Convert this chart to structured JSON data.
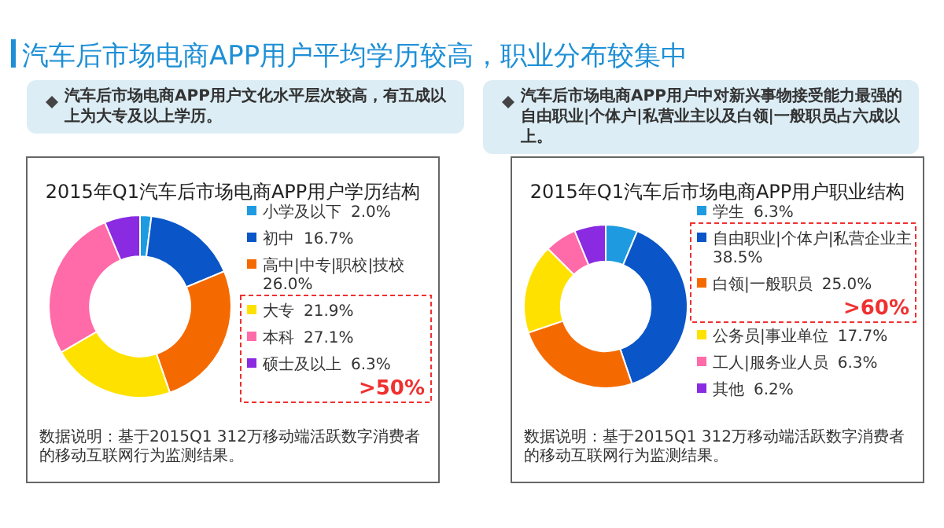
{
  "chart_data": [
    {
      "type": "donut",
      "title": "2015年Q1汽车后市场电商APP用户学历结构",
      "subtitle": "汽车后市场电商APP用户文化水平层次较高，有五成以上为大专及以上学历。",
      "categories": [
        "小学及以下",
        "初中",
        "高中|中专|职校|技校",
        "大专",
        "本科",
        "硕士及以上"
      ],
      "values": [
        2.0,
        16.7,
        26.0,
        21.9,
        27.1,
        6.3
      ],
      "colors": [
        "#1e9be0",
        "#0a56c8",
        "#f56a00",
        "#ffe100",
        "#ff6aa8",
        "#8a2be2"
      ],
      "value_labels": [
        "2.0%",
        "16.7%",
        "26.0%",
        "21.9%",
        "27.1%",
        "6.3%"
      ],
      "legend": "right",
      "annotations": [
        "汽车后市场电商APP用户平均学历较高，职业分布较集中",
        ">50%",
        "数据说明：基于2015Q1 312万移动端活跃数字消费者的移动互联网行为监测结果。"
      ]
    },
    {
      "type": "donut",
      "title": "2015年Q1汽车后市场电商APP用户职业结构",
      "subtitle": "汽车后市场电商APP用户中对新兴事物接受能力最强的自由职业|个体户|私营业主以及白领|一般职员占六成以上。",
      "categories": [
        "学生",
        "自由职业|个体户|私营企业主",
        "白领|一般职员",
        "公务员|事业单位",
        "工人|服务业人员",
        "其他"
      ],
      "values": [
        6.3,
        38.5,
        25.0,
        17.7,
        6.3,
        6.2
      ],
      "colors": [
        "#1e9be0",
        "#0a56c8",
        "#f56a00",
        "#ffe100",
        "#ff6aa8",
        "#8a2be2"
      ],
      "value_labels": [
        "6.3%",
        "38.5%",
        "25.0%",
        "17.7%",
        "6.3%",
        "6.2%"
      ],
      "legend": "right",
      "annotations": [
        ">60%",
        "数据说明：基于2015Q1 312万移动端活跃数字消费者的移动互联网行为监测结果。"
      ]
    }
  ]
}
